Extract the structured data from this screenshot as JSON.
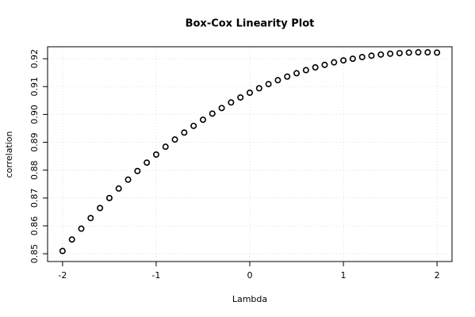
{
  "chart_data": {
    "type": "scatter",
    "title": "Box-Cox Linearity Plot",
    "x_label": "Lambda",
    "y_label": "correlation",
    "x": [
      -2,
      -1.9,
      -1.8,
      -1.7,
      -1.6,
      -1.5,
      -1.4,
      -1.3,
      -1.2,
      -1.1,
      -1,
      -0.9,
      -0.8,
      -0.7,
      -0.6,
      -0.5,
      -0.4,
      -0.3,
      -0.2,
      -0.1,
      0,
      0.1,
      0.2,
      0.3,
      0.4,
      0.5,
      0.6,
      0.7,
      0.8,
      0.9,
      1,
      1.1,
      1.2,
      1.3,
      1.4,
      1.5,
      1.6,
      1.7,
      1.8,
      1.9,
      2
    ],
    "values": [
      0.851,
      0.8551,
      0.859,
      0.8628,
      0.8664,
      0.87,
      0.8734,
      0.8766,
      0.8797,
      0.8827,
      0.8856,
      0.8884,
      0.891,
      0.8935,
      0.8959,
      0.8981,
      0.9003,
      0.9023,
      0.9043,
      0.9061,
      0.9078,
      0.9094,
      0.9109,
      0.9123,
      0.9136,
      0.9148,
      0.9159,
      0.9169,
      0.9178,
      0.9187,
      0.9194,
      0.92,
      0.9206,
      0.9211,
      0.9215,
      0.9218,
      0.922,
      0.9222,
      0.9223,
      0.9223,
      0.9222
    ],
    "color": "#000000",
    "xlim": [
      -2.16,
      2.16
    ],
    "xticks": [
      -2,
      -1,
      0,
      1,
      2
    ],
    "ylim": [
      0.8472,
      0.9243
    ],
    "yticks": [
      0.85,
      0.86,
      0.87,
      0.88,
      0.89,
      {
        "value": 0.9,
        "label": "0.90"
      },
      0.91,
      0.92
    ],
    "grid": true
  }
}
